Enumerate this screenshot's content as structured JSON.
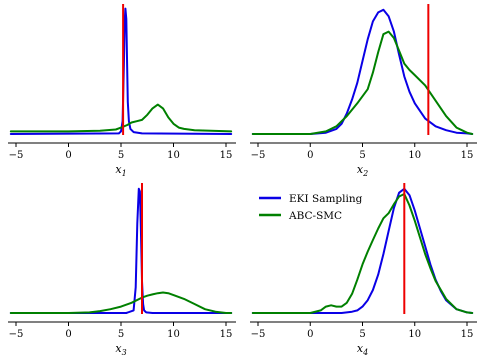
{
  "chart_data": [
    {
      "type": "line",
      "xlabel": "x",
      "xlabel_sub": "1",
      "xlim": [
        -5,
        15
      ],
      "ylim": [
        0,
        1
      ],
      "xticks": [
        -5,
        0,
        5,
        10,
        15
      ],
      "xtick_labels": [
        "−5",
        "0",
        "5",
        "10",
        "15"
      ],
      "grid": false,
      "true_value": 5.2,
      "series": [
        {
          "color": "#0a00e6",
          "x": [
            -5.5,
            4.8,
            5.0,
            5.15,
            5.28,
            5.35,
            5.42,
            5.5,
            5.58,
            5.65,
            5.75,
            5.9,
            6.2,
            7,
            15.5
          ],
          "y": [
            0.0,
            0.005,
            0.02,
            0.1,
            0.55,
            0.88,
            0.98,
            0.9,
            0.55,
            0.25,
            0.1,
            0.04,
            0.015,
            0.005,
            0.0
          ]
        },
        {
          "color": "#008000",
          "x": [
            -5.5,
            0,
            3,
            4.5,
            5.0,
            5.6,
            6.0,
            6.5,
            7.0,
            7.5,
            8.0,
            8.5,
            9.0,
            9.5,
            10.0,
            10.5,
            11.0,
            12.0,
            15.5
          ],
          "y": [
            0.02,
            0.02,
            0.025,
            0.035,
            0.05,
            0.07,
            0.09,
            0.1,
            0.11,
            0.15,
            0.2,
            0.23,
            0.2,
            0.13,
            0.08,
            0.05,
            0.04,
            0.03,
            0.02
          ]
        }
      ]
    },
    {
      "type": "line",
      "xlabel": "x",
      "xlabel_sub": "2",
      "xlim": [
        -5,
        15
      ],
      "ylim": [
        0,
        1
      ],
      "xticks": [
        -5,
        0,
        5,
        10,
        15
      ],
      "xtick_labels": [
        "−5",
        "0",
        "5",
        "10",
        "15"
      ],
      "grid": false,
      "true_value": 11.3,
      "series": [
        {
          "color": "#0a00e6",
          "x": [
            -5.5,
            0,
            1.5,
            2.5,
            3,
            3.5,
            4,
            4.5,
            5,
            5.5,
            6,
            6.5,
            7,
            7.5,
            8,
            8.5,
            9,
            9.5,
            10,
            11,
            12,
            13,
            14,
            15,
            15.5
          ],
          "y": [
            0.0,
            0.0,
            0.01,
            0.04,
            0.08,
            0.16,
            0.27,
            0.4,
            0.57,
            0.74,
            0.88,
            0.95,
            0.97,
            0.92,
            0.8,
            0.62,
            0.45,
            0.33,
            0.24,
            0.12,
            0.06,
            0.03,
            0.01,
            0.005,
            0.0
          ]
        },
        {
          "color": "#008000",
          "x": [
            -5.5,
            0,
            1.5,
            2.5,
            3.5,
            4.5,
            5.5,
            6,
            6.5,
            7,
            7.5,
            8,
            8.5,
            9,
            9.5,
            10,
            11,
            12,
            13,
            14,
            15,
            15.5
          ],
          "y": [
            0.0,
            0.0,
            0.02,
            0.06,
            0.14,
            0.24,
            0.35,
            0.48,
            0.64,
            0.78,
            0.8,
            0.75,
            0.65,
            0.55,
            0.5,
            0.46,
            0.38,
            0.26,
            0.14,
            0.05,
            0.01,
            0.0
          ]
        }
      ]
    },
    {
      "type": "line",
      "xlabel": "x",
      "xlabel_sub": "3",
      "xlim": [
        -5,
        15
      ],
      "ylim": [
        0,
        1
      ],
      "xticks": [
        -5,
        0,
        5,
        10,
        15
      ],
      "xtick_labels": [
        "−5",
        "0",
        "5",
        "10",
        "15"
      ],
      "grid": false,
      "true_value": 7.0,
      "series": [
        {
          "color": "#0a00e6",
          "x": [
            -5.5,
            5.5,
            6.2,
            6.4,
            6.55,
            6.7,
            6.8,
            6.9,
            7.0,
            7.1,
            7.2,
            7.4,
            8,
            15.5
          ],
          "y": [
            0.0,
            0.0,
            0.02,
            0.2,
            0.7,
            0.97,
            0.95,
            0.65,
            0.25,
            0.07,
            0.02,
            0.005,
            0.0,
            0.0
          ]
        },
        {
          "color": "#008000",
          "x": [
            -5.5,
            0,
            2,
            3,
            4,
            5,
            6,
            7,
            7.5,
            8,
            8.5,
            9,
            9.5,
            10,
            11,
            12,
            13,
            14,
            15,
            15.5
          ],
          "y": [
            0.0,
            0.0,
            0.005,
            0.015,
            0.03,
            0.05,
            0.08,
            0.12,
            0.135,
            0.145,
            0.155,
            0.16,
            0.155,
            0.14,
            0.11,
            0.07,
            0.03,
            0.01,
            0.0,
            0.0
          ]
        }
      ]
    },
    {
      "type": "line",
      "xlabel": "x",
      "xlabel_sub": "4",
      "xlim": [
        -5,
        15
      ],
      "ylim": [
        0,
        1
      ],
      "xticks": [
        -5,
        0,
        5,
        10,
        15
      ],
      "xtick_labels": [
        "−5",
        "0",
        "5",
        "10",
        "15"
      ],
      "grid": false,
      "true_value": 9.0,
      "legend": {
        "placement": "top-left",
        "entries": [
          "EKI Sampling",
          "ABC-SMC"
        ]
      },
      "series": [
        {
          "color": "#0a00e6",
          "x": [
            -5.5,
            2,
            3,
            4,
            4.5,
            5,
            5.5,
            6,
            6.5,
            7,
            7.5,
            8,
            8.5,
            9,
            9.5,
            10,
            10.5,
            11,
            11.5,
            12,
            12.5,
            13,
            14,
            15,
            15.5
          ],
          "y": [
            0.0,
            0.0,
            0.0,
            0.01,
            0.02,
            0.05,
            0.1,
            0.18,
            0.3,
            0.46,
            0.64,
            0.82,
            0.94,
            0.97,
            0.92,
            0.8,
            0.66,
            0.52,
            0.38,
            0.26,
            0.17,
            0.1,
            0.03,
            0.005,
            0.0
          ]
        },
        {
          "color": "#008000",
          "x": [
            -5.5,
            0,
            1,
            1.5,
            2,
            2.5,
            3,
            3.5,
            4,
            4.5,
            5,
            5.5,
            6,
            6.5,
            7,
            7.5,
            8,
            8.5,
            9,
            9.5,
            10,
            10.5,
            11,
            11.5,
            12,
            13,
            14,
            15,
            15.5
          ],
          "y": [
            0.0,
            0.0,
            0.02,
            0.05,
            0.06,
            0.05,
            0.05,
            0.08,
            0.15,
            0.26,
            0.38,
            0.48,
            0.57,
            0.66,
            0.74,
            0.78,
            0.85,
            0.91,
            0.93,
            0.84,
            0.72,
            0.59,
            0.46,
            0.35,
            0.25,
            0.11,
            0.03,
            0.005,
            0.0
          ]
        }
      ]
    }
  ]
}
